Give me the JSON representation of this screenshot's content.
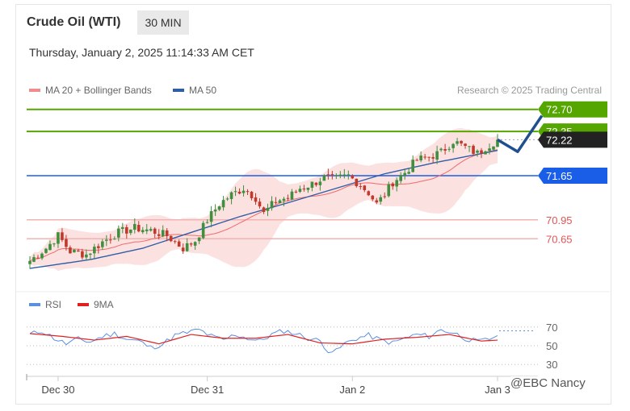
{
  "header": {
    "title": "Crude Oil (WTI)",
    "timeframe": "30 MIN",
    "datetime": "Thursday, January 2, 2025 11:14:33 AM CET",
    "credit": "Research © 2025 Trading Central",
    "watermark": "@EBC Nancy"
  },
  "legend": {
    "ma20": "MA 20 + Bollinger Bands",
    "ma50": "MA 50"
  },
  "rsi_legend": {
    "rsi": "RSI",
    "ma9": "9MA"
  },
  "colors": {
    "up": "#3f8f3f",
    "down": "#c0392b",
    "ma20": "#f06b6b",
    "band": "#fbd7d7",
    "ma50": "#2f5da8",
    "green_level": "#55a600",
    "blue_level": "#1a5ee8",
    "red_level": "#e05555",
    "arrow": "#1f4f8f"
  },
  "chart_data": [
    {
      "type": "candlestick",
      "title": "Crude Oil (WTI)",
      "x_tick_labels": [
        "Dec 30",
        "Dec 31",
        "Jan 2",
        "Jan 3"
      ],
      "ylim": [
        69.9,
        72.85
      ],
      "levels": [
        {
          "label": "72.70",
          "value": 72.7,
          "kind": "resistance"
        },
        {
          "label": "72.35",
          "value": 72.35,
          "kind": "resistance"
        },
        {
          "label": "72.22",
          "value": 72.22,
          "kind": "last_price"
        },
        {
          "label": "71.65",
          "value": 71.65,
          "kind": "pivot"
        },
        {
          "label": "70.95",
          "value": 70.95,
          "kind": "support"
        },
        {
          "label": "70.65",
          "value": 70.65,
          "kind": "support"
        }
      ],
      "ma50_anchors": [
        [
          0,
          70.18
        ],
        [
          15,
          70.32
        ],
        [
          28,
          70.5
        ],
        [
          40,
          70.75
        ],
        [
          52,
          71.0
        ],
        [
          64,
          71.22
        ],
        [
          76,
          71.45
        ],
        [
          88,
          71.68
        ],
        [
          100,
          71.85
        ],
        [
          112,
          72.0
        ],
        [
          116,
          72.05
        ]
      ],
      "forecast_path": [
        [
          116,
          72.22
        ],
        [
          121,
          72.03
        ],
        [
          127,
          72.6
        ]
      ],
      "close_anchors": [
        [
          0,
          70.3
        ],
        [
          4,
          70.5
        ],
        [
          7,
          70.7
        ],
        [
          10,
          70.45
        ],
        [
          14,
          70.4
        ],
        [
          18,
          70.6
        ],
        [
          22,
          70.75
        ],
        [
          26,
          70.82
        ],
        [
          30,
          70.78
        ],
        [
          34,
          70.7
        ],
        [
          38,
          70.5
        ],
        [
          41,
          70.62
        ],
        [
          44,
          70.95
        ],
        [
          47,
          71.2
        ],
        [
          50,
          71.35
        ],
        [
          53,
          71.45
        ],
        [
          56,
          71.3
        ],
        [
          58,
          71.05
        ],
        [
          61,
          71.25
        ],
        [
          64,
          71.3
        ],
        [
          67,
          71.45
        ],
        [
          70,
          71.52
        ],
        [
          73,
          71.62
        ],
        [
          76,
          71.6
        ],
        [
          79,
          71.65
        ],
        [
          82,
          71.5
        ],
        [
          84,
          71.38
        ],
        [
          86,
          71.2
        ],
        [
          88,
          71.35
        ],
        [
          90,
          71.55
        ],
        [
          93,
          71.7
        ],
        [
          96,
          71.9
        ],
        [
          99,
          71.95
        ],
        [
          102,
          72.02
        ],
        [
          105,
          72.2
        ],
        [
          108,
          72.1
        ],
        [
          111,
          72.0
        ],
        [
          113,
          72.1
        ],
        [
          116,
          72.22
        ]
      ]
    },
    {
      "type": "line",
      "title": "RSI",
      "yticks": [
        70,
        50,
        30
      ],
      "ylim": [
        25,
        75
      ],
      "rsi_anchors": [
        [
          0,
          62
        ],
        [
          3,
          66
        ],
        [
          6,
          58
        ],
        [
          9,
          52
        ],
        [
          12,
          57
        ],
        [
          15,
          54
        ],
        [
          18,
          60
        ],
        [
          21,
          63
        ],
        [
          24,
          57
        ],
        [
          27,
          55
        ],
        [
          30,
          48
        ],
        [
          33,
          52
        ],
        [
          36,
          61
        ],
        [
          39,
          64
        ],
        [
          42,
          67
        ],
        [
          45,
          60
        ],
        [
          48,
          56
        ],
        [
          51,
          62
        ],
        [
          54,
          58
        ],
        [
          57,
          55
        ],
        [
          60,
          62
        ],
        [
          63,
          66
        ],
        [
          66,
          63
        ],
        [
          69,
          58
        ],
        [
          72,
          55
        ],
        [
          74,
          45
        ],
        [
          76,
          44
        ],
        [
          78,
          52
        ],
        [
          81,
          58
        ],
        [
          84,
          61
        ],
        [
          87,
          56
        ],
        [
          90,
          53
        ],
        [
          93,
          58
        ],
        [
          96,
          62
        ],
        [
          99,
          60
        ],
        [
          102,
          67
        ],
        [
          105,
          64
        ],
        [
          108,
          58
        ],
        [
          111,
          54
        ],
        [
          114,
          57
        ],
        [
          116,
          62
        ]
      ],
      "ma9_anchors": [
        [
          0,
          63
        ],
        [
          8,
          60
        ],
        [
          16,
          56
        ],
        [
          24,
          60
        ],
        [
          32,
          52
        ],
        [
          40,
          62
        ],
        [
          48,
          58
        ],
        [
          56,
          58
        ],
        [
          64,
          62
        ],
        [
          72,
          53
        ],
        [
          80,
          52
        ],
        [
          88,
          57
        ],
        [
          96,
          59
        ],
        [
          104,
          62
        ],
        [
          112,
          55
        ],
        [
          116,
          56
        ]
      ]
    }
  ]
}
